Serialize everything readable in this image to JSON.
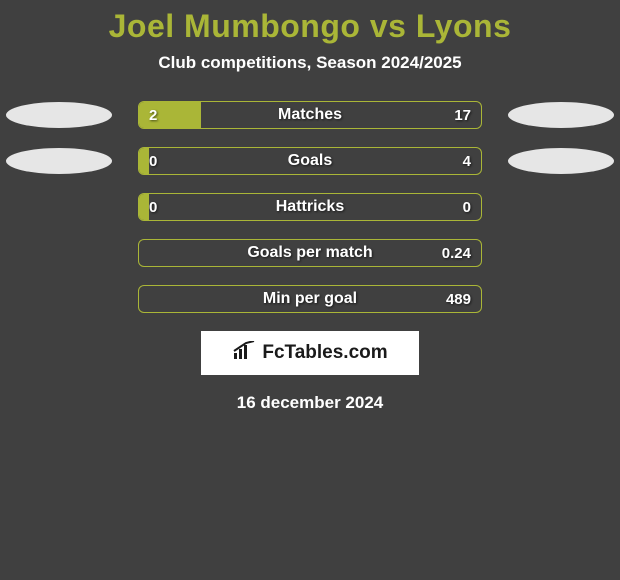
{
  "title": "Joel Mumbongo vs Lyons",
  "subtitle": "Club competitions, Season 2024/2025",
  "date": "16 december 2024",
  "colors": {
    "background": "#404040",
    "accent": "#aab637",
    "text": "#ffffff",
    "ellipse": "#e6e6e6",
    "logo_bg": "#ffffff",
    "logo_text": "#1a1a1a"
  },
  "logo_text": "FcTables.com",
  "rows": [
    {
      "label": "Matches",
      "left_val": "2",
      "right_val": "17",
      "left_ellipse": true,
      "right_ellipse": true,
      "left_fill_pct": 18,
      "right_fill_pct": 0
    },
    {
      "label": "Goals",
      "left_val": "0",
      "right_val": "4",
      "left_ellipse": true,
      "right_ellipse": true,
      "left_fill_pct": 3,
      "right_fill_pct": 0
    },
    {
      "label": "Hattricks",
      "left_val": "0",
      "right_val": "0",
      "left_ellipse": false,
      "right_ellipse": false,
      "left_fill_pct": 3,
      "right_fill_pct": 0
    },
    {
      "label": "Goals per match",
      "left_val": "",
      "right_val": "0.24",
      "left_ellipse": false,
      "right_ellipse": false,
      "left_fill_pct": 0,
      "right_fill_pct": 0
    },
    {
      "label": "Min per goal",
      "left_val": "",
      "right_val": "489",
      "left_ellipse": false,
      "right_ellipse": false,
      "left_fill_pct": 0,
      "right_fill_pct": 0
    }
  ]
}
